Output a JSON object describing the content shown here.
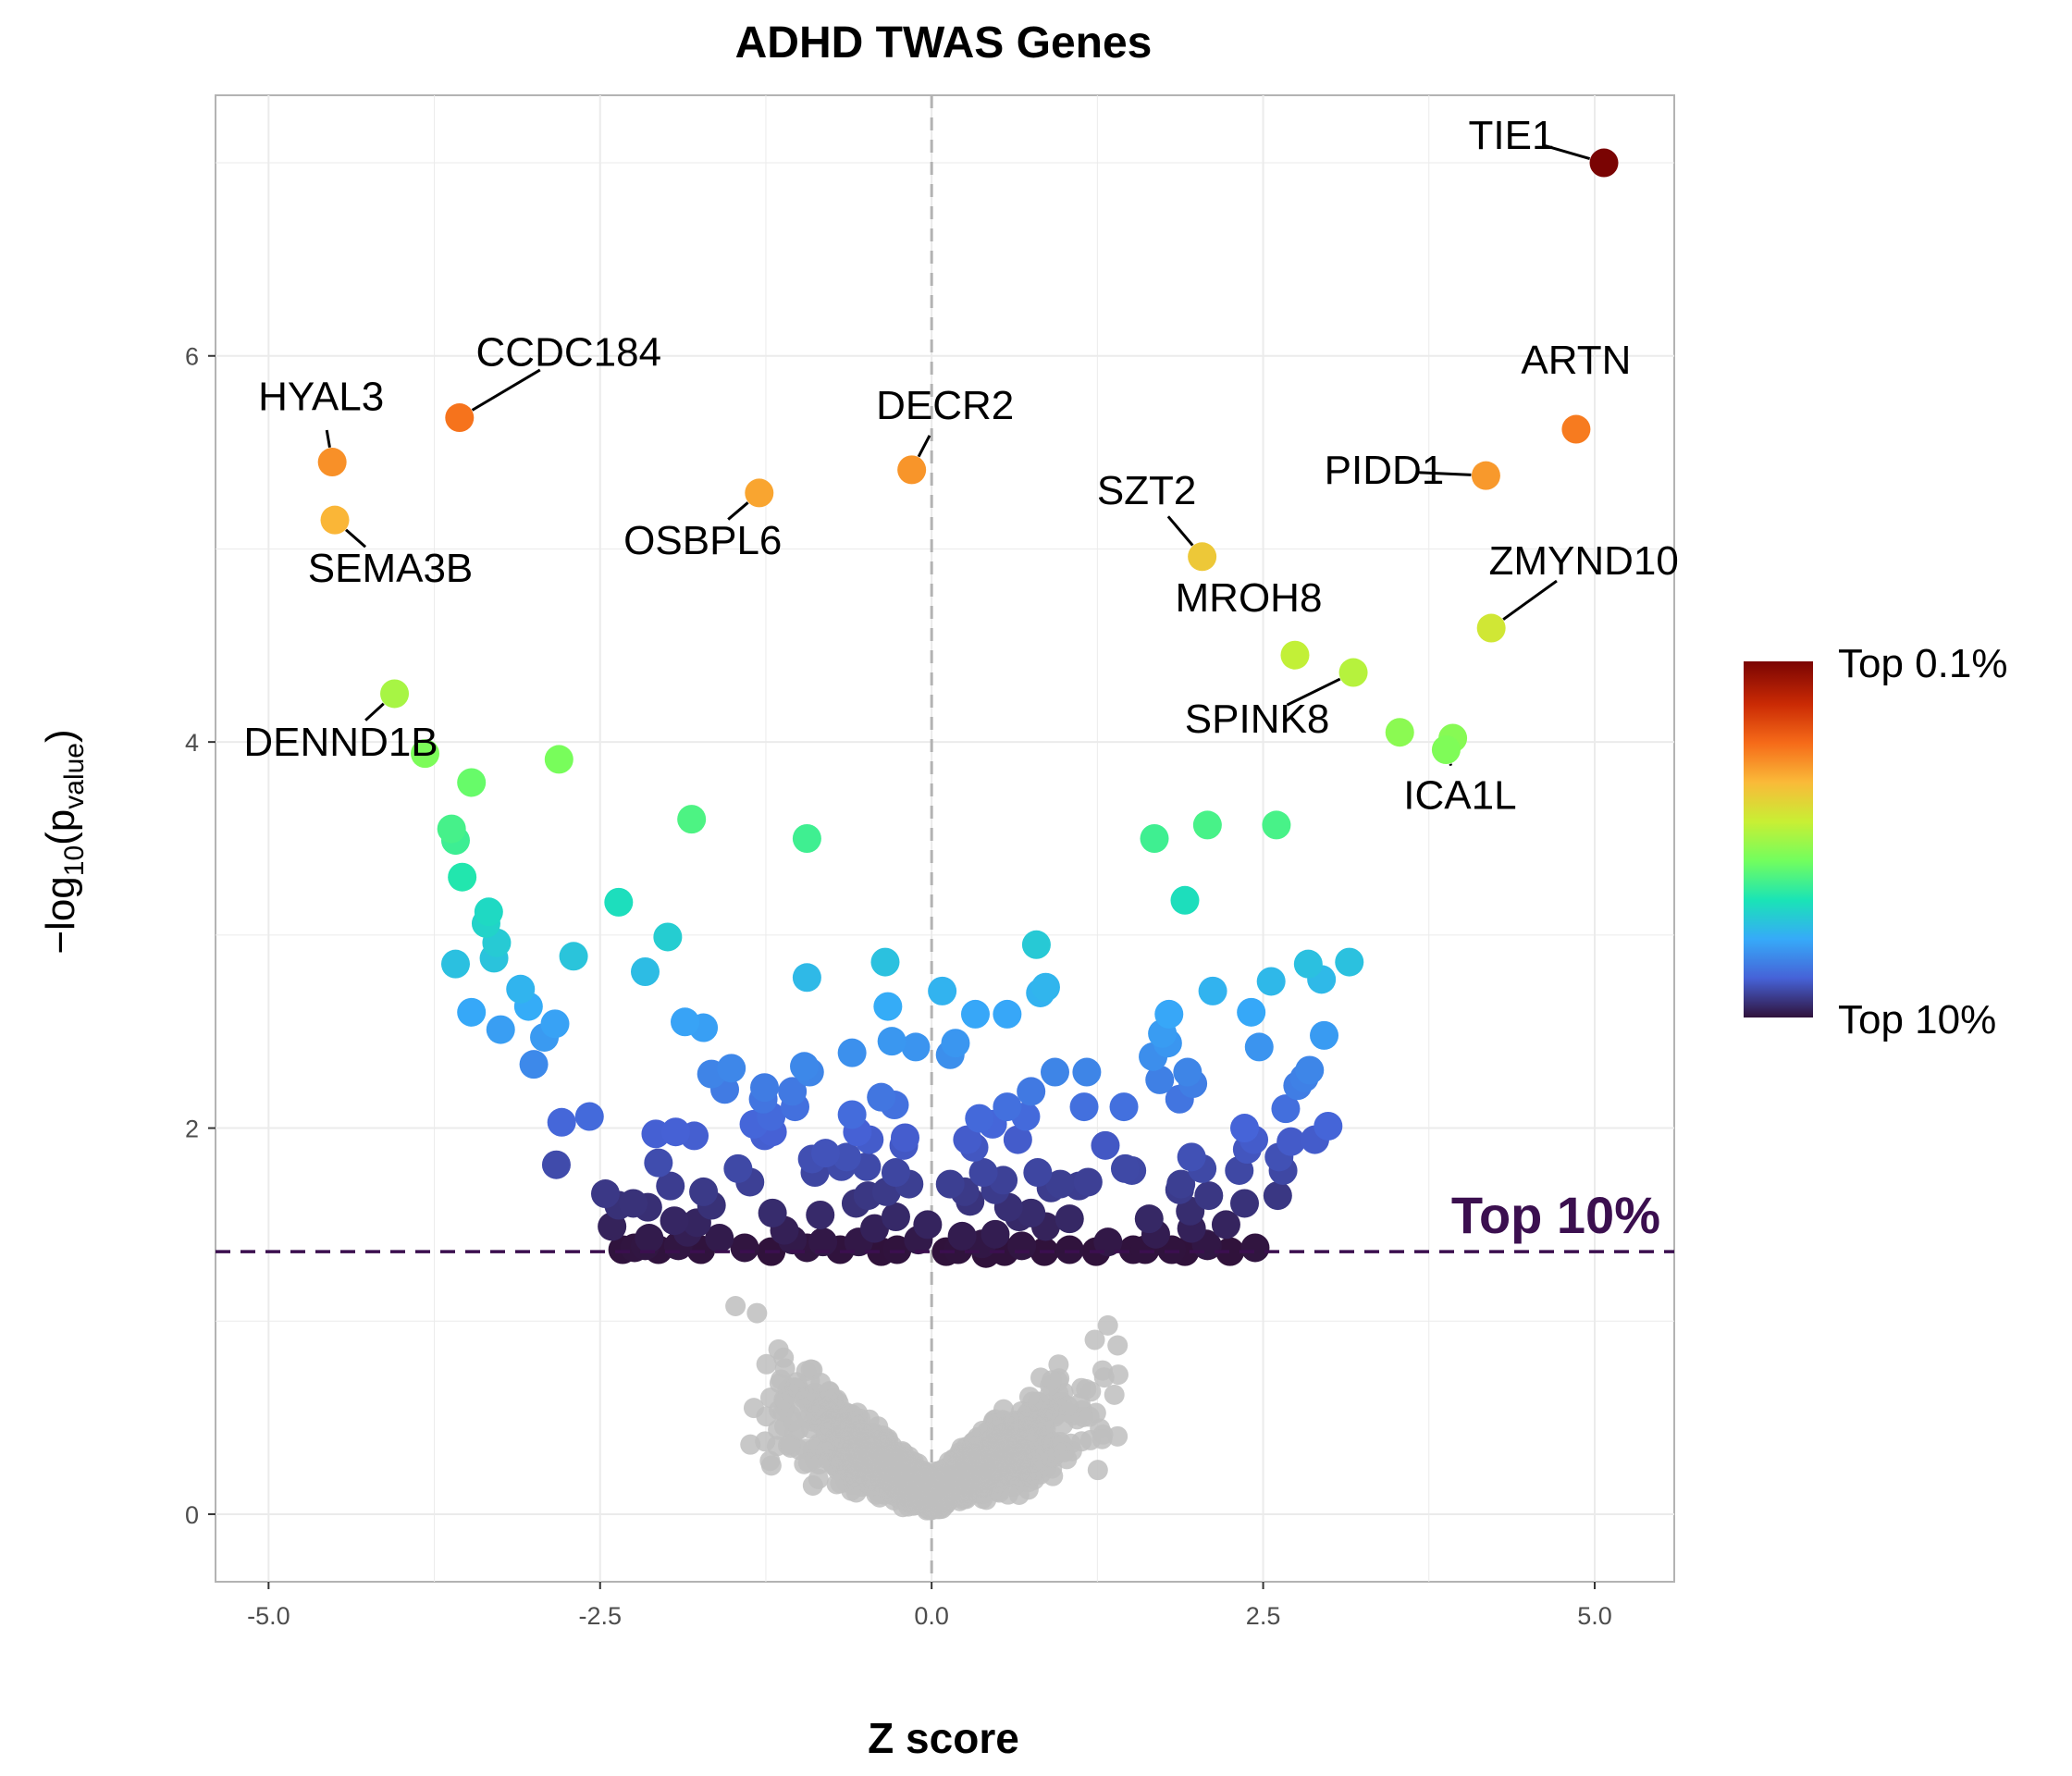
{
  "chart_data": {
    "type": "scatter",
    "title": "ADHD TWAS Genes",
    "xlabel": "Z score",
    "ylabel": "−log10(pvalue)",
    "ylabel_parts": {
      "prefix": "−log",
      "sub1": "10",
      "open": "(p",
      "sub2": "value",
      "close": ")"
    },
    "xlim": [
      -5.4,
      5.6
    ],
    "ylim": [
      -0.35,
      7.35
    ],
    "x_ticks": [
      -5.0,
      -2.5,
      0.0,
      2.5,
      5.0
    ],
    "x_tick_labels": [
      "-5.0",
      "-2.5",
      "0.0",
      "2.5",
      "5.0"
    ],
    "y_ticks": [
      0,
      2,
      4,
      6
    ],
    "y_tick_labels": [
      "0",
      "2",
      "4",
      "6"
    ],
    "grid": true,
    "vline_x": 0,
    "threshold": {
      "y": 1.36,
      "label": "Top 10%",
      "color": "#3b0f4f"
    },
    "legend": {
      "position": "right",
      "high_label": "Top 0.1%",
      "low_label": "Top 10%"
    },
    "colors": {
      "grey": "#bebebe",
      "gradient": [
        "#30123b",
        "#4662d7",
        "#36aaf9",
        "#1ae4b6",
        "#72fe5e",
        "#c8ef34",
        "#faba39",
        "#f66b19",
        "#ca2a04",
        "#7a0403"
      ]
    },
    "labeled_points": [
      {
        "gene": "TIE1",
        "x": 5.07,
        "y": 7.0
      },
      {
        "gene": "CCDC184",
        "x": -3.56,
        "y": 5.68
      },
      {
        "gene": "ARTN",
        "x": 4.86,
        "y": 5.62
      },
      {
        "gene": "HYAL3",
        "x": -4.52,
        "y": 5.45
      },
      {
        "gene": "DECR2",
        "x": -0.15,
        "y": 5.41
      },
      {
        "gene": "PIDD1",
        "x": 4.18,
        "y": 5.38
      },
      {
        "gene": "OSBPL6",
        "x": -1.3,
        "y": 5.29
      },
      {
        "gene": "SEMA3B",
        "x": -4.5,
        "y": 5.15
      },
      {
        "gene": "SZT2",
        "x": 2.04,
        "y": 4.96
      },
      {
        "gene": "ZMYND10",
        "x": 4.22,
        "y": 4.59
      },
      {
        "gene": "MROH8",
        "x": 2.74,
        "y": 4.45
      },
      {
        "gene": "SPINK8",
        "x": 3.18,
        "y": 4.36
      },
      {
        "gene": "DENND1B",
        "x": -4.05,
        "y": 4.25
      },
      {
        "gene": "ICA1L",
        "x": 3.88,
        "y": 3.96
      }
    ],
    "top_points": [
      [
        3.93,
        4.02
      ],
      [
        3.53,
        4.05
      ],
      [
        -3.82,
        3.94
      ],
      [
        -2.81,
        3.91
      ],
      [
        -3.47,
        3.79
      ],
      [
        2.6,
        3.57
      ],
      [
        2.08,
        3.57
      ],
      [
        -1.81,
        3.6
      ],
      [
        -0.94,
        3.5
      ],
      [
        1.68,
        3.5
      ],
      [
        -3.62,
        3.55
      ],
      [
        -3.59,
        3.49
      ],
      [
        -3.54,
        3.3
      ],
      [
        -2.36,
        3.17
      ],
      [
        1.91,
        3.18
      ],
      [
        -3.34,
        3.12
      ],
      [
        -3.36,
        3.06
      ],
      [
        -1.99,
        2.99
      ],
      [
        -3.28,
        2.96
      ],
      [
        -3.59,
        2.85
      ],
      [
        -2.7,
        2.89
      ],
      [
        -3.3,
        2.88
      ],
      [
        0.79,
        2.95
      ],
      [
        3.15,
        2.86
      ],
      [
        2.84,
        2.85
      ],
      [
        -0.35,
        2.86
      ],
      [
        -2.16,
        2.81
      ],
      [
        -0.94,
        2.78
      ],
      [
        2.94,
        2.77
      ],
      [
        0.86,
        2.73
      ],
      [
        -3.1,
        2.72
      ],
      [
        2.56,
        2.76
      ],
      [
        0.82,
        2.7
      ],
      [
        2.12,
        2.71
      ],
      [
        0.08,
        2.71
      ],
      [
        -3.04,
        2.63
      ],
      [
        -0.33,
        2.63
      ],
      [
        -3.47,
        2.6
      ],
      [
        1.79,
        2.59
      ],
      [
        2.41,
        2.6
      ],
      [
        0.33,
        2.59
      ],
      [
        0.57,
        2.59
      ],
      [
        -1.86,
        2.55
      ],
      [
        -1.72,
        2.52
      ],
      [
        -2.84,
        2.54
      ],
      [
        -2.92,
        2.47
      ],
      [
        -3.25,
        2.51
      ],
      [
        1.74,
        2.49
      ],
      [
        2.96,
        2.48
      ],
      [
        1.78,
        2.44
      ],
      [
        -0.3,
        2.45
      ],
      [
        0.18,
        2.44
      ],
      [
        2.47,
        2.42
      ],
      [
        -0.12,
        2.42
      ],
      [
        0.14,
        2.38
      ],
      [
        -0.6,
        2.39
      ],
      [
        1.67,
        2.37
      ],
      [
        -3.0,
        2.33
      ],
      [
        -1.51,
        2.31
      ],
      [
        -0.96,
        2.32
      ],
      [
        -1.66,
        2.28
      ],
      [
        -0.92,
        2.29
      ],
      [
        2.85,
        2.3
      ],
      [
        1.93,
        2.29
      ],
      [
        0.93,
        2.29
      ],
      [
        -1.26,
        2.21
      ],
      [
        1.17,
        2.29
      ],
      [
        2.81,
        2.26
      ],
      [
        1.72,
        2.25
      ],
      [
        2.76,
        2.22
      ],
      [
        1.97,
        2.23
      ],
      [
        -1.56,
        2.2
      ],
      [
        0.75,
        2.19
      ],
      [
        -1.05,
        2.19
      ],
      [
        -1.27,
        2.15
      ],
      [
        1.87,
        2.15
      ],
      [
        -0.38,
        2.16
      ],
      [
        -0.28,
        2.12
      ],
      [
        -1.03,
        2.11
      ],
      [
        -2.58,
        2.06
      ],
      [
        -2.79,
        2.03
      ],
      [
        -0.6,
        2.07
      ],
      [
        1.45,
        2.11
      ],
      [
        1.15,
        2.11
      ],
      [
        0.36,
        2.05
      ],
      [
        -1.21,
        2.06
      ],
      [
        0.57,
        2.11
      ],
      [
        2.67,
        2.1
      ],
      [
        -1.34,
        2.02
      ],
      [
        0.71,
        2.06
      ],
      [
        2.36,
        2.0
      ],
      [
        -1.2,
        1.98
      ],
      [
        -1.93,
        1.98
      ],
      [
        -2.08,
        1.97
      ],
      [
        0.46,
        2.02
      ],
      [
        -1.79,
        1.96
      ],
      [
        -1.26,
        1.96
      ],
      [
        -0.56,
        1.98
      ],
      [
        1.31,
        1.91
      ],
      [
        2.99,
        2.01
      ],
      [
        2.89,
        1.94
      ],
      [
        2.71,
        1.93
      ],
      [
        0.65,
        1.94
      ],
      [
        -0.2,
        1.95
      ],
      [
        2.43,
        1.94
      ],
      [
        -0.47,
        1.94
      ],
      [
        0.27,
        1.94
      ],
      [
        -0.21,
        1.91
      ],
      [
        0.32,
        1.9
      ],
      [
        2.38,
        1.89
      ],
      [
        1.96,
        1.85
      ],
      [
        2.62,
        1.85
      ],
      [
        -0.8,
        1.87
      ],
      [
        -0.64,
        1.85
      ],
      [
        -0.68,
        1.8
      ],
      [
        1.46,
        1.79
      ],
      [
        2.65,
        1.78
      ],
      [
        1.51,
        1.78
      ],
      [
        -0.9,
        1.84
      ],
      [
        -2.83,
        1.81
      ],
      [
        -1.46,
        1.79
      ],
      [
        2.04,
        1.79
      ],
      [
        -2.06,
        1.82
      ],
      [
        -0.49,
        1.8
      ],
      [
        2.32,
        1.78
      ],
      [
        -0.88,
        1.77
      ],
      [
        0.39,
        1.77
      ],
      [
        -0.27,
        1.77
      ],
      [
        0.8,
        1.77
      ],
      [
        0.54,
        1.73
      ],
      [
        1.18,
        1.72
      ],
      [
        0.14,
        1.71
      ],
      [
        1.88,
        1.71
      ],
      [
        -0.17,
        1.71
      ],
      [
        0.97,
        1.71
      ],
      [
        -1.37,
        1.72
      ],
      [
        1.11,
        1.7
      ],
      [
        0.48,
        1.68
      ],
      [
        -1.97,
        1.7
      ],
      [
        0.9,
        1.69
      ],
      [
        1.87,
        1.68
      ],
      [
        0.25,
        1.67
      ],
      [
        -0.34,
        1.67
      ],
      [
        -1.72,
        1.67
      ],
      [
        -2.46,
        1.66
      ],
      [
        -0.48,
        1.65
      ],
      [
        2.09,
        1.65
      ],
      [
        2.61,
        1.65
      ],
      [
        0.29,
        1.62
      ],
      [
        -2.25,
        1.61
      ],
      [
        -0.57,
        1.61
      ],
      [
        -1.66,
        1.6
      ],
      [
        2.36,
        1.61
      ],
      [
        -2.36,
        1.6
      ],
      [
        0.58,
        1.59
      ],
      [
        -2.14,
        1.59
      ],
      [
        1.95,
        1.57
      ],
      [
        -1.2,
        1.56
      ],
      [
        0.75,
        1.56
      ],
      [
        -0.84,
        1.55
      ],
      [
        -0.27,
        1.54
      ],
      [
        0.66,
        1.54
      ],
      [
        1.04,
        1.53
      ],
      [
        -1.94,
        1.52
      ],
      [
        1.64,
        1.53
      ],
      [
        -1.77,
        1.51
      ],
      [
        -0.03,
        1.5
      ],
      [
        2.22,
        1.5
      ],
      [
        -2.41,
        1.49
      ],
      [
        0.86,
        1.49
      ],
      [
        1.96,
        1.48
      ],
      [
        -0.43,
        1.48
      ],
      [
        -1.11,
        1.47
      ],
      [
        -1.84,
        1.46
      ],
      [
        1.69,
        1.45
      ],
      [
        0.48,
        1.45
      ],
      [
        0.23,
        1.44
      ],
      [
        -1.6,
        1.43
      ],
      [
        -2.13,
        1.43
      ],
      [
        -1.05,
        1.42
      ],
      [
        -0.82,
        1.41
      ],
      [
        -0.55,
        1.41
      ],
      [
        -0.1,
        1.42
      ],
      [
        1.33,
        1.41
      ],
      [
        2.07,
        1.4
      ],
      [
        0.38,
        1.4
      ],
      [
        -1.91,
        1.39
      ],
      [
        0.68,
        1.39
      ],
      [
        -2.24,
        1.38
      ],
      [
        2.44,
        1.38
      ],
      [
        1.52,
        1.37
      ],
      [
        -0.26,
        1.37
      ],
      [
        1.91,
        1.36
      ],
      [
        0.11,
        1.36
      ],
      [
        1.81,
        1.37
      ],
      [
        -1.41,
        1.38
      ],
      [
        0.85,
        1.36
      ],
      [
        -0.94,
        1.38
      ],
      [
        0.2,
        1.37
      ],
      [
        1.24,
        1.36
      ],
      [
        -2.06,
        1.37
      ],
      [
        0.55,
        1.36
      ],
      [
        -1.74,
        1.37
      ],
      [
        -2.33,
        1.37
      ],
      [
        0.41,
        1.35
      ],
      [
        -0.38,
        1.36
      ],
      [
        2.25,
        1.36
      ],
      [
        1.04,
        1.37
      ],
      [
        -1.21,
        1.36
      ],
      [
        1.61,
        1.37
      ],
      [
        -0.69,
        1.37
      ],
      [
        -2.16,
        1.39
      ],
      [
        2.08,
        1.39
      ]
    ]
  }
}
